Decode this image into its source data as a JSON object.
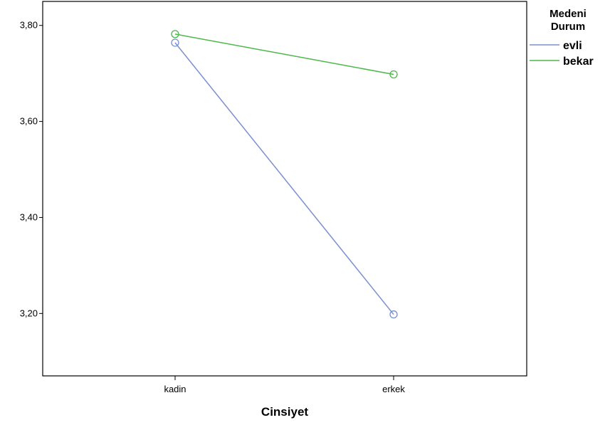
{
  "chart_data": {
    "type": "line",
    "xlabel": "Cinsiyet",
    "ylabel": "",
    "categories": [
      "kadin",
      "erkek"
    ],
    "ylim": [
      3.07,
      3.85
    ],
    "yticks": [
      "3,80",
      "3,60",
      "3,40",
      "3,20"
    ],
    "ytick_values": [
      3.8,
      3.6,
      3.4,
      3.2
    ],
    "grid": false,
    "legend": {
      "title_line1": "Medeni",
      "title_line2": "Durum",
      "position": "right"
    },
    "series": [
      {
        "name": "evli",
        "values": [
          3.764,
          3.198
        ],
        "color": "#7b8fd1",
        "marker": "open-circle"
      },
      {
        "name": "bekar",
        "values": [
          3.782,
          3.698
        ],
        "color": "#4cb84a",
        "marker": "open-circle"
      }
    ]
  }
}
